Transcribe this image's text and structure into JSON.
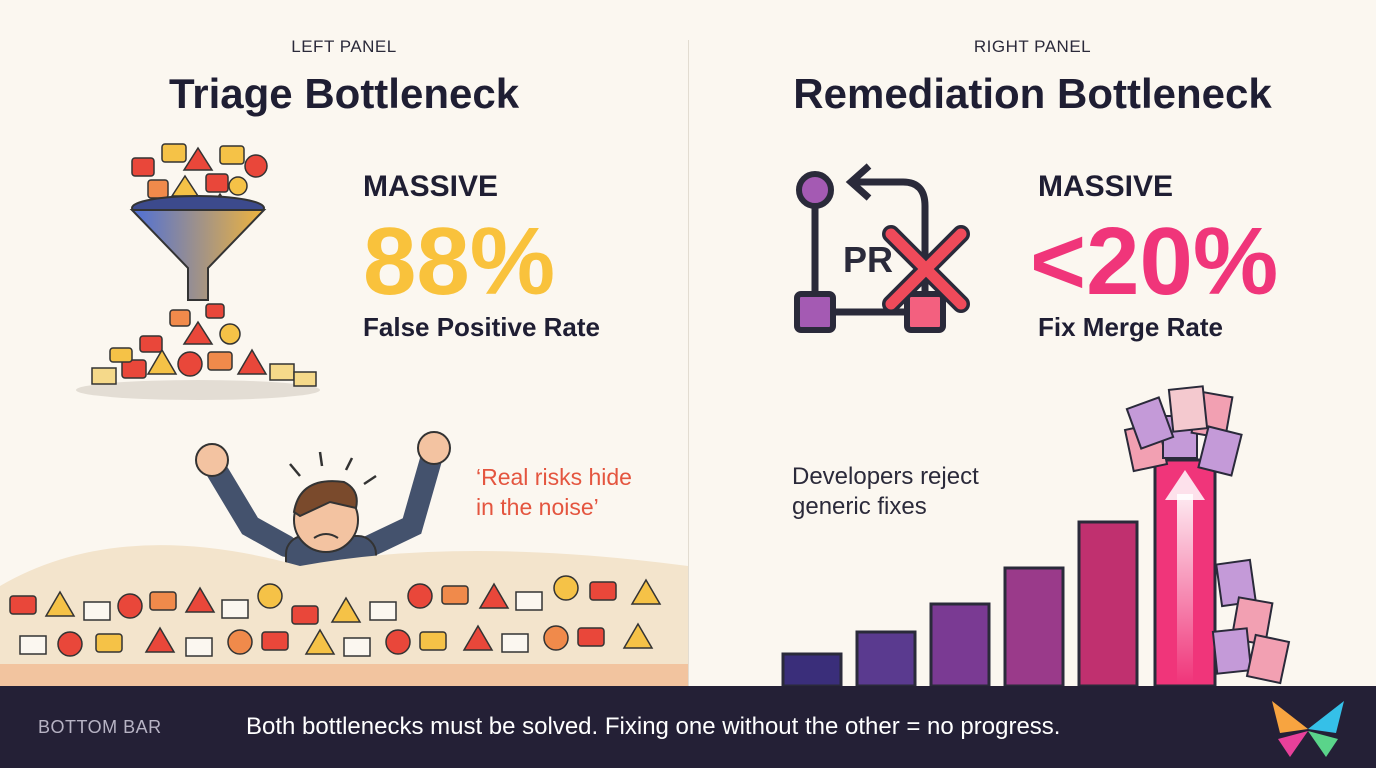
{
  "left_panel": {
    "tag": "LEFT PANEL",
    "title": "Triage Bottleneck",
    "metric_label": "MASSIVE",
    "metric_value": "88%",
    "metric_caption": "False Positive Rate",
    "quote_line1": "‘Real risks hide",
    "quote_line2": "in the noise’",
    "value_color": "#f9c23c"
  },
  "right_panel": {
    "tag": "RIGHT PANEL",
    "title": "Remediation Bottleneck",
    "metric_label": "MASSIVE",
    "metric_value": "<20%",
    "metric_caption": "Fix Merge Rate",
    "pr_label": "PR",
    "note_line1": "Developers reject",
    "note_line2": "generic fixes",
    "value_color": "#f0357a"
  },
  "bottom_bar": {
    "tag": "BOTTOM BAR",
    "message": "Both bottlenecks must be solved. Fixing one without the other = no progress."
  },
  "icons": [
    "funnel-icon",
    "alert-icon",
    "envelope-icon",
    "frustrated-person-icon",
    "pull-request-icon",
    "reject-x-icon",
    "document-icon",
    "up-arrow-icon",
    "butterfly-logo-icon"
  ]
}
